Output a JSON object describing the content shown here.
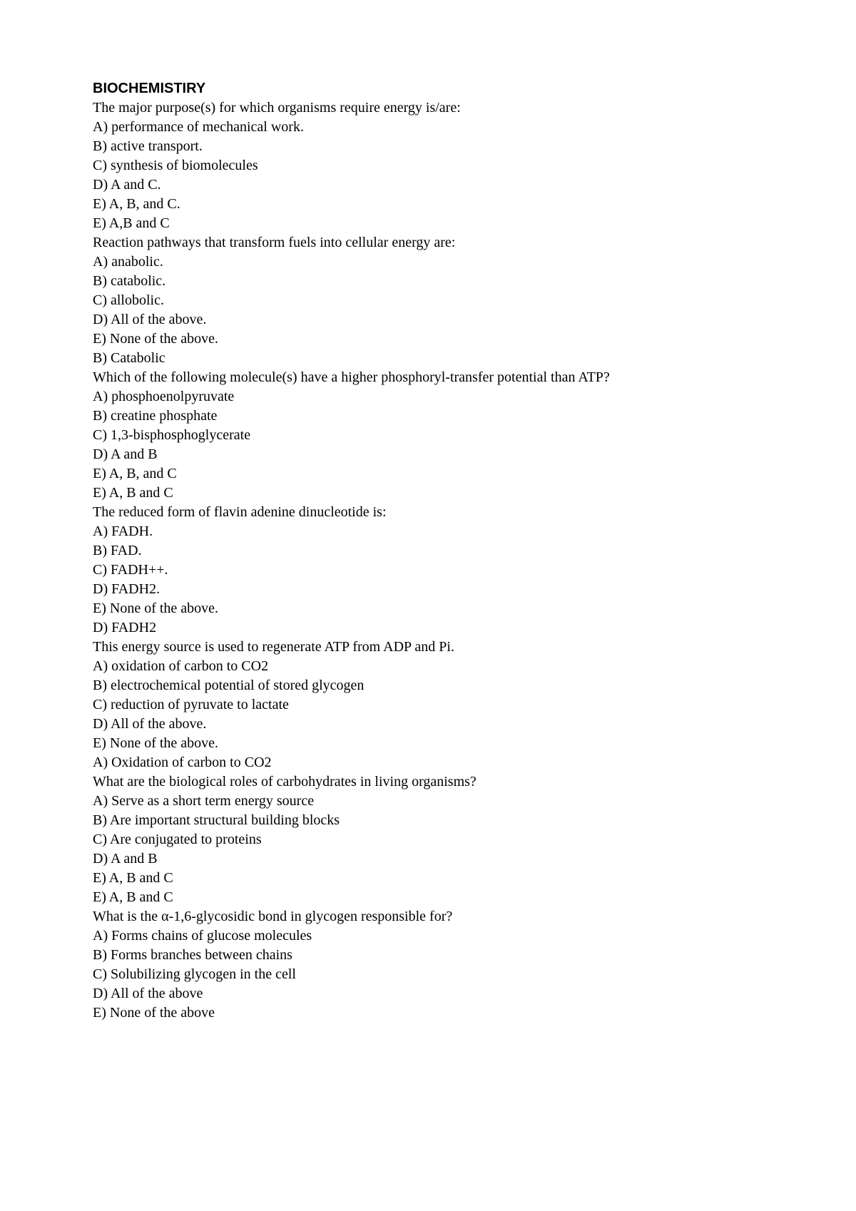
{
  "heading": "BIOCHEMISTIRY",
  "lines": [
    "The major purpose(s) for which organisms require energy is/are:",
    "A) performance of mechanical work.",
    "B) active transport.",
    "C) synthesis of biomolecules",
    "D) A and C.",
    "E) A, B, and C.",
    "E) A,B and C",
    "Reaction pathways that transform fuels into cellular energy are:",
    "A) anabolic.",
    "B) catabolic.",
    "C) allobolic.",
    "D) All of the above.",
    "E) None of the above.",
    "B) Catabolic",
    "Which of the following molecule(s) have a higher phosphoryl-transfer potential than ATP?",
    "A) phosphoenolpyruvate",
    "B) creatine phosphate",
    "C) 1,3-bisphosphoglycerate",
    "D) A and B",
    "E) A, B, and C",
    "E) A, B and C",
    "The reduced form of flavin adenine dinucleotide is:",
    "A) FADH.",
    "B) FAD.",
    "C) FADH++.",
    "D) FADH2.",
    "E) None of the above.",
    "D) FADH2",
    "This energy source is used to regenerate ATP from ADP and Pi.",
    "A) oxidation of carbon to CO2",
    "B) electrochemical potential of stored glycogen",
    "C) reduction of pyruvate to lactate",
    "D) All of the above.",
    "E) None of the above.",
    "A) Oxidation of carbon to CO2",
    "What are the biological roles of carbohydrates in living organisms?",
    "A) Serve as a short term energy source",
    "B) Are important structural building blocks",
    "C) Are conjugated to proteins",
    "D) A and B",
    "E) A, B and C",
    "E) A, B and C",
    "What is the α-1,6-glycosidic bond in glycogen responsible for?",
    "A) Forms chains of glucose molecules",
    "B) Forms branches between chains",
    "C) Solubilizing glycogen in the cell",
    "D) All of the above",
    "E) None of the above"
  ]
}
